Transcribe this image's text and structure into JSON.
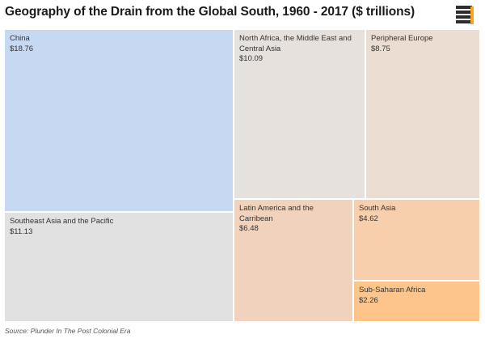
{
  "title": "Geography of the Drain from the Global South, 1960 - 2017 ($ trillions)",
  "source": "Source: Plunder In The Post Colonial Era",
  "logo_icon": "stacked-bars-logo-icon",
  "chart_data": {
    "type": "treemap",
    "title": "Geography of the Drain from the Global South, 1960 - 2017 ($ trillions)",
    "unit": "$ trillions",
    "items": [
      {
        "label": "China",
        "value": 18.76,
        "display": "$18.76",
        "color": "#c6d8f2"
      },
      {
        "label": "North Africa, the Middle East and Central Asia",
        "value": 10.09,
        "display": "$10.09",
        "color": "#e6e1dc"
      },
      {
        "label": "Peripheral Europe",
        "value": 8.75,
        "display": "$8.75",
        "color": "#ebddd2"
      },
      {
        "label": "Southeast Asia and the Pacific",
        "value": 11.13,
        "display": "$11.13",
        "color": "#e1e1e1"
      },
      {
        "label": "Latin America and the Carribean",
        "value": 6.48,
        "display": "$6.48",
        "color": "#f1d3bd"
      },
      {
        "label": "South Asia",
        "value": 4.62,
        "display": "$4.62",
        "color": "#f8cfad"
      },
      {
        "label": "Sub-Saharan Africa",
        "value": 2.26,
        "display": "$2.26",
        "color": "#fdc58b"
      }
    ]
  }
}
